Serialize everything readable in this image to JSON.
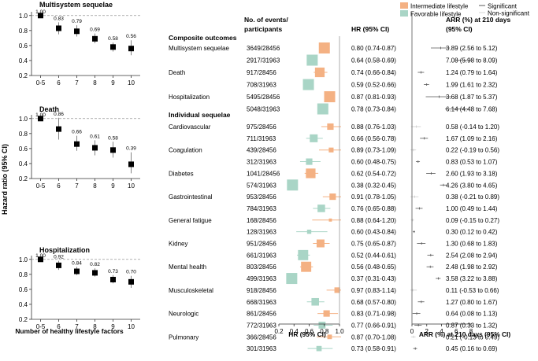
{
  "colors": {
    "intermediate": "#F4B183",
    "favorable": "#A9D5C6",
    "point": "#000000",
    "refline": "#999999",
    "ci": "#777777"
  },
  "left_panel": {
    "ylabel": "Hazard ratio (95% CI)",
    "xlabel": "Number of healthy lifestyle factors"
  },
  "forest": {
    "col_outcome": [
      "No. of events/",
      "participants"
    ],
    "col_hr": "HR (95% CI)",
    "col_arr": [
      "ARR (%) at 210 days",
      "(95% CI)"
    ],
    "section_composite": "Composite outcomes",
    "section_individual": "Individual sequelae",
    "legend": {
      "intermediate": "Intermediate lifestyle",
      "favorable": "Favorable lifestyle",
      "significant": "Significant",
      "nonsignificant": "Non-significant"
    }
  },
  "chart_data": [
    {
      "type": "scatter",
      "title": "Multisystem sequelae",
      "categories": [
        "0-5",
        "6",
        "7",
        "8",
        "9",
        "10"
      ],
      "values": [
        1.0,
        0.83,
        0.79,
        0.69,
        0.58,
        0.56
      ],
      "labels": [
        "1.00",
        "0.83",
        "0.79",
        "0.69",
        "0.58",
        "0.56"
      ],
      "ci_low": [
        1.0,
        0.75,
        0.72,
        0.63,
        0.52,
        0.47
      ],
      "ci_high": [
        1.0,
        0.91,
        0.87,
        0.76,
        0.64,
        0.67
      ],
      "ylim": [
        0.2,
        1.05
      ],
      "yticks": [
        0.2,
        0.4,
        0.6,
        0.8,
        1.0
      ],
      "ytick_labels": [
        "0.2",
        "0.4",
        "0.6",
        "0.8",
        "1.0"
      ],
      "reference_line": 1.0,
      "ylabel": "Hazard ratio (95% CI)",
      "xlabel": ""
    },
    {
      "type": "scatter",
      "title": "Death",
      "categories": [
        "0-5",
        "6",
        "7",
        "8",
        "9",
        "10"
      ],
      "values": [
        1.0,
        0.86,
        0.66,
        0.61,
        0.58,
        0.39
      ],
      "labels": [
        "1.00",
        "0.86",
        "0.66",
        "0.61",
        "0.58",
        "0.39"
      ],
      "ci_low": [
        1.0,
        0.72,
        0.57,
        0.51,
        0.48,
        0.27
      ],
      "ci_high": [
        1.0,
        1.01,
        0.77,
        0.71,
        0.69,
        0.55
      ],
      "ylim": [
        0.2,
        1.05
      ],
      "yticks": [
        0.2,
        0.4,
        0.6,
        0.8,
        1.0
      ],
      "ytick_labels": [
        "0.2",
        "0.4",
        "0.6",
        "0.8",
        "1.0"
      ],
      "reference_line": 1.0,
      "ylabel": "Hazard ratio (95% CI)",
      "xlabel": ""
    },
    {
      "type": "scatter",
      "title": "Hospitalization",
      "categories": [
        "0-5",
        "6",
        "7",
        "8",
        "9",
        "10"
      ],
      "values": [
        1.0,
        0.92,
        0.84,
        0.82,
        0.73,
        0.7
      ],
      "labels": [
        "1.00",
        "0.92",
        "0.84",
        "0.82",
        "0.73",
        "0.70"
      ],
      "ci_low": [
        1.0,
        0.86,
        0.79,
        0.77,
        0.68,
        0.62
      ],
      "ci_high": [
        1.0,
        0.98,
        0.9,
        0.88,
        0.79,
        0.78
      ],
      "ylim": [
        0.2,
        1.05
      ],
      "yticks": [
        0.2,
        0.4,
        0.6,
        0.8,
        1.0
      ],
      "ytick_labels": [
        "0.2",
        "0.4",
        "0.6",
        "0.8",
        "1.0"
      ],
      "reference_line": 1.0,
      "ylabel": "Hazard ratio (95% CI)",
      "xlabel": "Number of healthy lifestyle factors"
    },
    {
      "type": "forest",
      "title": "HR (95% CI)",
      "xlabel": "HR (95% CI)",
      "xlim": [
        0.2,
        1.0
      ],
      "xticks": [
        0.2,
        0.4,
        0.6,
        0.8,
        1.0
      ],
      "xtick_labels": [
        "0.2",
        "0.4",
        "0.6",
        "0.8",
        "1.0"
      ],
      "reference_line": 1.0,
      "series": [
        "Intermediate lifestyle",
        "Favorable lifestyle"
      ],
      "groups": [
        {
          "section": "Composite outcomes",
          "name": "Multisystem sequelae",
          "rows": [
            {
              "lifestyle": "intermediate",
              "events": "3649/28456",
              "hr": 0.8,
              "lo": 0.74,
              "hi": 0.87,
              "hr_text": "0.80 (0.74-0.87)",
              "arr": 3.89,
              "arr_lo": 2.56,
              "arr_hi": 5.12,
              "arr_text": "3.89 (2.56 to 5.12)",
              "significant": true
            },
            {
              "lifestyle": "favorable",
              "events": "2917/31963",
              "hr": 0.64,
              "lo": 0.58,
              "hi": 0.69,
              "hr_text": "0.64 (0.58-0.69)",
              "arr": 7.08,
              "arr_lo": 5.98,
              "arr_hi": 8.09,
              "arr_text": "7.08 (5.98 to 8.09)",
              "significant": true
            }
          ]
        },
        {
          "section": "Composite outcomes",
          "name": "Death",
          "rows": [
            {
              "lifestyle": "intermediate",
              "events": "917/28456",
              "hr": 0.74,
              "lo": 0.66,
              "hi": 0.84,
              "hr_text": "0.74 (0.66-0.84)",
              "arr": 1.24,
              "arr_lo": 0.79,
              "arr_hi": 1.64,
              "arr_text": "1.24 (0.79 to 1.64)",
              "significant": true
            },
            {
              "lifestyle": "favorable",
              "events": "708/31963",
              "hr": 0.59,
              "lo": 0.52,
              "hi": 0.66,
              "hr_text": "0.59 (0.52-0.66)",
              "arr": 1.99,
              "arr_lo": 1.61,
              "arr_hi": 2.32,
              "arr_text": "1.99 (1.61 to 2.32)",
              "significant": true
            }
          ]
        },
        {
          "section": "Composite outcomes",
          "name": "Hospitalization",
          "rows": [
            {
              "lifestyle": "intermediate",
              "events": "5495/28456",
              "hr": 0.87,
              "lo": 0.81,
              "hi": 0.93,
              "hr_text": "0.87 (0.81-0.93)",
              "arr": 3.68,
              "arr_lo": 1.87,
              "arr_hi": 5.37,
              "arr_text": "3.68 (1.87 to 5.37)",
              "significant": true
            },
            {
              "lifestyle": "favorable",
              "events": "5048/31963",
              "hr": 0.78,
              "lo": 0.73,
              "hi": 0.84,
              "hr_text": "0.78 (0.73-0.84)",
              "arr": 6.14,
              "arr_lo": 4.48,
              "arr_hi": 7.68,
              "arr_text": "6.14 (4.48 to 7.68)",
              "significant": true
            }
          ]
        },
        {
          "section": "Individual sequelae",
          "name": "Cardiovascular",
          "rows": [
            {
              "lifestyle": "intermediate",
              "events": "975/28456",
              "hr": 0.88,
              "lo": 0.76,
              "hi": 1.03,
              "hr_text": "0.88 (0.76-1.03)",
              "arr": 0.58,
              "arr_lo": -0.14,
              "arr_hi": 1.2,
              "arr_text": "0.58 (-0.14 to 1.20)",
              "significant": false
            },
            {
              "lifestyle": "favorable",
              "events": "711/31963",
              "hr": 0.66,
              "lo": 0.56,
              "hi": 0.78,
              "hr_text": "0.66 (0.56-0.78)",
              "arr": 1.67,
              "arr_lo": 1.09,
              "arr_hi": 2.16,
              "arr_text": "1.67 (1.09 to 2.16)",
              "significant": true
            }
          ]
        },
        {
          "section": "Individual sequelae",
          "name": "Coagulation",
          "rows": [
            {
              "lifestyle": "intermediate",
              "events": "439/28456",
              "hr": 0.89,
              "lo": 0.73,
              "hi": 1.09,
              "hr_text": "0.89 (0.73-1.09)",
              "arr": 0.22,
              "arr_lo": -0.19,
              "arr_hi": 0.56,
              "arr_text": "0.22 (-0.19 to 0.56)",
              "significant": false
            },
            {
              "lifestyle": "favorable",
              "events": "312/31963",
              "hr": 0.6,
              "lo": 0.48,
              "hi": 0.75,
              "hr_text": "0.60 (0.48-0.75)",
              "arr": 0.83,
              "arr_lo": 0.53,
              "arr_hi": 1.07,
              "arr_text": "0.83 (0.53 to 1.07)",
              "significant": true
            }
          ]
        },
        {
          "section": "Individual sequelae",
          "name": "Diabetes",
          "rows": [
            {
              "lifestyle": "intermediate",
              "events": "1041/28456",
              "hr": 0.62,
              "lo": 0.54,
              "hi": 0.72,
              "hr_text": "0.62 (0.54-0.72)",
              "arr": 2.6,
              "arr_lo": 1.93,
              "arr_hi": 3.18,
              "arr_text": "2.60 (1.93 to 3.18)",
              "significant": true
            },
            {
              "lifestyle": "favorable",
              "events": "574/31963",
              "hr": 0.38,
              "lo": 0.32,
              "hi": 0.45,
              "hr_text": "0.38 (0.32-0.45)",
              "arr": 4.26,
              "arr_lo": 3.8,
              "arr_hi": 4.65,
              "arr_text": "4.26 (3.80 to 4.65)",
              "significant": true
            }
          ]
        },
        {
          "section": "Individual sequelae",
          "name": "Gastrointestinal",
          "rows": [
            {
              "lifestyle": "intermediate",
              "events": "953/28456",
              "hr": 0.91,
              "lo": 0.78,
              "hi": 1.05,
              "hr_text": "0.91 (0.78-1.05)",
              "arr": 0.38,
              "arr_lo": -0.21,
              "arr_hi": 0.89,
              "arr_text": "0.38 (-0.21 to 0.89)",
              "significant": false
            },
            {
              "lifestyle": "favorable",
              "events": "784/31963",
              "hr": 0.76,
              "lo": 0.65,
              "hi": 0.88,
              "hr_text": "0.76 (0.65-0.88)",
              "arr": 1.0,
              "arr_lo": 0.49,
              "arr_hi": 1.44,
              "arr_text": "1.00 (0.49 to 1.44)",
              "significant": true
            }
          ]
        },
        {
          "section": "Individual sequelae",
          "name": "General fatigue",
          "rows": [
            {
              "lifestyle": "intermediate",
              "events": "168/28456",
              "hr": 0.88,
              "lo": 0.64,
              "hi": 1.2,
              "hr_text": "0.88 (0.64-1.20)",
              "arr": 0.09,
              "arr_lo": -0.15,
              "arr_hi": 0.27,
              "arr_text": "0.09 (-0.15 to 0.27)",
              "significant": false
            },
            {
              "lifestyle": "favorable",
              "events": "128/31963",
              "hr": 0.6,
              "lo": 0.43,
              "hi": 0.84,
              "hr_text": "0.60 (0.43-0.84)",
              "arr": 0.3,
              "arr_lo": 0.12,
              "arr_hi": 0.42,
              "arr_text": "0.30 (0.12 to 0.42)",
              "significant": true
            }
          ]
        },
        {
          "section": "Individual sequelae",
          "name": "Kidney",
          "rows": [
            {
              "lifestyle": "intermediate",
              "events": "951/28456",
              "hr": 0.75,
              "lo": 0.65,
              "hi": 0.87,
              "hr_text": "0.75 (0.65-0.87)",
              "arr": 1.3,
              "arr_lo": 0.68,
              "arr_hi": 1.83,
              "arr_text": "1.30 (0.68 to 1.83)",
              "significant": true
            },
            {
              "lifestyle": "favorable",
              "events": "661/31963",
              "hr": 0.52,
              "lo": 0.44,
              "hi": 0.61,
              "hr_text": "0.52 (0.44-0.61)",
              "arr": 2.54,
              "arr_lo": 2.08,
              "arr_hi": 2.94,
              "arr_text": "2.54 (2.08 to 2.94)",
              "significant": true
            }
          ]
        },
        {
          "section": "Individual sequelae",
          "name": "Mental health",
          "rows": [
            {
              "lifestyle": "intermediate",
              "events": "803/28456",
              "hr": 0.56,
              "lo": 0.48,
              "hi": 0.65,
              "hr_text": "0.56 (0.48-0.65)",
              "arr": 2.48,
              "arr_lo": 1.98,
              "arr_hi": 2.92,
              "arr_text": "2.48 (1.98 to 2.92)",
              "significant": true
            },
            {
              "lifestyle": "favorable",
              "events": "499/31963",
              "hr": 0.37,
              "lo": 0.31,
              "hi": 0.43,
              "hr_text": "0.37 (0.31-0.43)",
              "arr": 3.58,
              "arr_lo": 3.22,
              "arr_hi": 3.88,
              "arr_text": "3.58 (3.22 to 3.88)",
              "significant": true
            }
          ]
        },
        {
          "section": "Individual sequelae",
          "name": "Musculoskeletal",
          "rows": [
            {
              "lifestyle": "intermediate",
              "events": "918/28456",
              "hr": 0.97,
              "lo": 0.83,
              "hi": 1.14,
              "hr_text": "0.97 (0.83-1.14)",
              "arr": 0.11,
              "arr_lo": -0.53,
              "arr_hi": 0.66,
              "arr_text": "0.11 (-0.53 to 0.66)",
              "significant": false
            },
            {
              "lifestyle": "favorable",
              "events": "668/31963",
              "hr": 0.68,
              "lo": 0.57,
              "hi": 0.8,
              "hr_text": "0.68 (0.57-0.80)",
              "arr": 1.27,
              "arr_lo": 0.8,
              "arr_hi": 1.67,
              "arr_text": "1.27 (0.80 to 1.67)",
              "significant": true
            }
          ]
        },
        {
          "section": "Individual sequelae",
          "name": "Neurologic",
          "rows": [
            {
              "lifestyle": "intermediate",
              "events": "861/28456",
              "hr": 0.83,
              "lo": 0.71,
              "hi": 0.98,
              "hr_text": "0.83 (0.71-0.98)",
              "arr": 0.64,
              "arr_lo": 0.08,
              "arr_hi": 1.13,
              "arr_text": "0.64 (0.08 to 1.13)",
              "significant": true
            },
            {
              "lifestyle": "favorable",
              "events": "772/31963",
              "hr": 0.77,
              "lo": 0.66,
              "hi": 0.91,
              "hr_text": "0.77 (0.66-0.91)",
              "arr": 0.87,
              "arr_lo": 0.33,
              "arr_hi": 1.32,
              "arr_text": "0.87 (0.33 to 1.32)",
              "significant": true
            }
          ]
        },
        {
          "section": "Individual sequelae",
          "name": "Pulmonary",
          "rows": [
            {
              "lifestyle": "intermediate",
              "events": "366/28456",
              "hr": 0.87,
              "lo": 0.7,
              "hi": 1.08,
              "hr_text": "0.87 (0.70-1.08)",
              "arr": 0.21,
              "arr_lo": -0.13,
              "arr_hi": 0.49,
              "arr_text": "0.21 (-0.13 to 0.49)",
              "significant": false
            },
            {
              "lifestyle": "favorable",
              "events": "301/31963",
              "hr": 0.73,
              "lo": 0.58,
              "hi": 0.91,
              "hr_text": "0.73 (0.58-0.91)",
              "arr": 0.45,
              "arr_lo": 0.16,
              "arr_hi": 0.69,
              "arr_text": "0.45 (0.16 to 0.69)",
              "significant": true
            }
          ]
        }
      ]
    },
    {
      "type": "forest",
      "title": "ARR (%) at 210 days (95% CI)",
      "xlabel": "ARR (%) at 210 days (95% CI)",
      "xlim": [
        0,
        8
      ],
      "xticks": [
        0,
        2,
        4,
        6,
        8
      ],
      "xtick_labels": [
        "0",
        "2",
        "4",
        "6",
        "8"
      ],
      "reference_line": 0
    }
  ]
}
